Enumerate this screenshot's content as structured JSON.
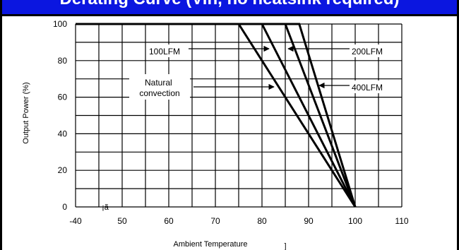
{
  "banner": {
    "title": "Derating Curve (Vin, no heatsink required)"
  },
  "chart_data": {
    "type": "line",
    "xlabel": "Ambient Temperature",
    "xlabel_unit_glyph": "]",
    "ylabel": "Output Power  (%)",
    "stray_glyph": "¡ã",
    "xlim": [
      -40,
      110
    ],
    "ylim": [
      0,
      100
    ],
    "x_ticks": [
      -40,
      50,
      60,
      70,
      80,
      90,
      100,
      110
    ],
    "y_ticks": [
      0,
      20,
      40,
      60,
      80,
      100
    ],
    "grid": true,
    "series": [
      {
        "name": "Natural convection",
        "points": [
          [
            -40,
            100
          ],
          [
            75,
            100
          ],
          [
            100,
            0
          ]
        ]
      },
      {
        "name": "100LFM",
        "points": [
          [
            -40,
            100
          ],
          [
            80,
            100
          ],
          [
            100,
            0
          ]
        ]
      },
      {
        "name": "200LFM",
        "points": [
          [
            -40,
            100
          ],
          [
            85,
            100
          ],
          [
            100,
            0
          ]
        ]
      },
      {
        "name": "400LFM",
        "points": [
          [
            -40,
            100
          ],
          [
            88,
            100
          ],
          [
            100,
            0
          ]
        ]
      }
    ],
    "callouts": [
      {
        "label": "100LFM",
        "series": "100LFM"
      },
      {
        "label": "200LFM",
        "series": "200LFM"
      },
      {
        "label": "400LFM",
        "series": "400LFM"
      },
      {
        "label": "Natural convection",
        "series": "Natural convection"
      }
    ]
  }
}
